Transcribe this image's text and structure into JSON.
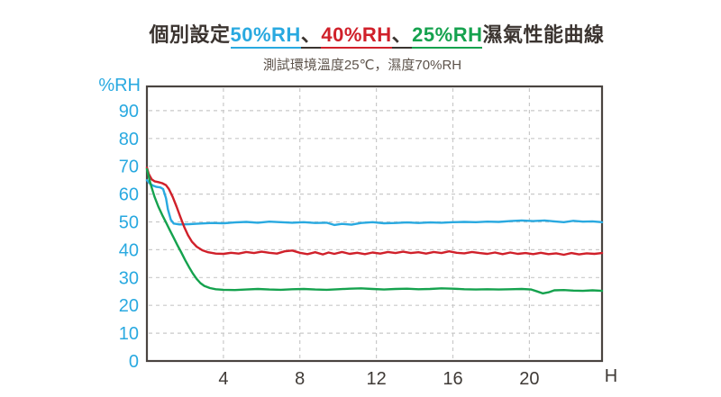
{
  "title": {
    "segments": [
      {
        "text": "個別設定",
        "color": "#3b3430",
        "underline": false
      },
      {
        "text": "50%RH",
        "color": "#29a9e0",
        "underline": true
      },
      {
        "text": "、",
        "color": "#3b3430",
        "underline": true
      },
      {
        "text": "40%RH",
        "color": "#d0202a",
        "underline": true
      },
      {
        "text": "、",
        "color": "#3b3430",
        "underline": true
      },
      {
        "text": "25%RH",
        "color": "#15a24e",
        "underline": true
      },
      {
        "text": "濕氣性能曲線",
        "color": "#3b3430",
        "underline": false
      }
    ]
  },
  "subtitle": {
    "text": "測試環境溫度25℃，濕度70%RH",
    "color": "#5d534b"
  },
  "chart_data": {
    "type": "line",
    "title": "個別設定50%RH、40%RH、25%RH濕氣性能曲線",
    "subtitle": "測試環境溫度25℃，濕度70%RH",
    "xlabel": "H",
    "ylabel": "%RH",
    "xlim": [
      0,
      23.8
    ],
    "ylim": [
      0,
      98.7
    ],
    "x_ticks": [
      4,
      8,
      12,
      16,
      20
    ],
    "y_ticks": [
      0,
      10,
      20,
      30,
      40,
      50,
      60,
      70,
      80,
      90
    ],
    "grid": "dashed",
    "legend": "none",
    "background": "#ffffff",
    "axis_color": "#4a4440",
    "grid_color": "#c9c9c9",
    "tick_label_colors": {
      "x": "#3f3a36",
      "y": "#29a9e0"
    },
    "series": [
      {
        "name": "50%RH",
        "color": "#29a9e0",
        "points": [
          [
            0,
            65
          ],
          [
            0.15,
            63.8
          ],
          [
            0.3,
            63.1
          ],
          [
            0.5,
            62.6
          ],
          [
            0.7,
            62.4
          ],
          [
            0.85,
            61.8
          ],
          [
            1.0,
            58.5
          ],
          [
            1.1,
            54.5
          ],
          [
            1.25,
            50.8
          ],
          [
            1.4,
            49.4
          ],
          [
            1.7,
            49.1
          ],
          [
            2.2,
            49.2
          ],
          [
            2.8,
            49.4
          ],
          [
            3.4,
            49.6
          ],
          [
            4,
            49.5
          ],
          [
            4.6,
            49.8
          ],
          [
            5.2,
            50.0
          ],
          [
            5.8,
            49.7
          ],
          [
            6.4,
            50.1
          ],
          [
            7,
            49.9
          ],
          [
            7.6,
            49.7
          ],
          [
            8.2,
            49.9
          ],
          [
            8.8,
            49.6
          ],
          [
            9.4,
            49.7
          ],
          [
            9.8,
            48.9
          ],
          [
            10.2,
            49.3
          ],
          [
            10.7,
            49.0
          ],
          [
            11.2,
            49.6
          ],
          [
            11.8,
            49.9
          ],
          [
            12.4,
            49.5
          ],
          [
            13,
            49.6
          ],
          [
            13.6,
            49.8
          ],
          [
            14.2,
            49.6
          ],
          [
            14.8,
            49.8
          ],
          [
            15.4,
            49.7
          ],
          [
            16,
            49.9
          ],
          [
            16.6,
            50.0
          ],
          [
            17.2,
            49.9
          ],
          [
            17.8,
            50.1
          ],
          [
            18.4,
            50.0
          ],
          [
            19,
            50.3
          ],
          [
            19.6,
            50.5
          ],
          [
            20.2,
            50.3
          ],
          [
            20.8,
            50.5
          ],
          [
            21.3,
            50.2
          ],
          [
            21.8,
            49.9
          ],
          [
            22.3,
            50.4
          ],
          [
            22.8,
            50.1
          ],
          [
            23.3,
            50.2
          ],
          [
            23.8,
            49.9
          ]
        ]
      },
      {
        "name": "40%RH",
        "color": "#d0202a",
        "points": [
          [
            0,
            69.5
          ],
          [
            0.1,
            67.2
          ],
          [
            0.25,
            65.3
          ],
          [
            0.4,
            64.6
          ],
          [
            0.6,
            64.3
          ],
          [
            0.8,
            63.9
          ],
          [
            1.0,
            63.2
          ],
          [
            1.15,
            61.8
          ],
          [
            1.35,
            59
          ],
          [
            1.55,
            55.5
          ],
          [
            1.75,
            51.8
          ],
          [
            1.95,
            48.2
          ],
          [
            2.15,
            45.2
          ],
          [
            2.35,
            42.9
          ],
          [
            2.6,
            41.1
          ],
          [
            2.9,
            39.8
          ],
          [
            3.2,
            39.1
          ],
          [
            3.6,
            38.6
          ],
          [
            4,
            38.5
          ],
          [
            4.4,
            38.9
          ],
          [
            4.8,
            38.6
          ],
          [
            5.2,
            39.2
          ],
          [
            5.6,
            38.8
          ],
          [
            6,
            39.3
          ],
          [
            6.4,
            38.9
          ],
          [
            6.8,
            38.6
          ],
          [
            7.2,
            39.4
          ],
          [
            7.6,
            39.7
          ],
          [
            8,
            38.9
          ],
          [
            8.4,
            38.4
          ],
          [
            8.8,
            39.1
          ],
          [
            9.2,
            38.3
          ],
          [
            9.5,
            39.0
          ],
          [
            9.8,
            38.5
          ],
          [
            10.2,
            39.2
          ],
          [
            10.6,
            38.5
          ],
          [
            11,
            38.9
          ],
          [
            11.4,
            38.4
          ],
          [
            11.8,
            39.0
          ],
          [
            12.2,
            38.6
          ],
          [
            12.6,
            39.2
          ],
          [
            13,
            38.8
          ],
          [
            13.4,
            39.3
          ],
          [
            13.8,
            38.8
          ],
          [
            14.2,
            39.1
          ],
          [
            14.6,
            38.6
          ],
          [
            15,
            39.2
          ],
          [
            15.4,
            38.8
          ],
          [
            15.8,
            39.4
          ],
          [
            16.2,
            38.9
          ],
          [
            16.6,
            38.7
          ],
          [
            17,
            39.2
          ],
          [
            17.4,
            38.8
          ],
          [
            17.8,
            38.5
          ],
          [
            18.2,
            39.0
          ],
          [
            18.6,
            38.4
          ],
          [
            19,
            39.0
          ],
          [
            19.4,
            38.5
          ],
          [
            19.8,
            38.8
          ],
          [
            20.2,
            38.4
          ],
          [
            20.6,
            38.9
          ],
          [
            21,
            38.4
          ],
          [
            21.4,
            38.7
          ],
          [
            21.8,
            38.2
          ],
          [
            22.2,
            38.8
          ],
          [
            22.6,
            38.3
          ],
          [
            23,
            38.7
          ],
          [
            23.4,
            38.5
          ],
          [
            23.8,
            38.8
          ]
        ]
      },
      {
        "name": "25%RH",
        "color": "#15a24e",
        "points": [
          [
            0,
            69
          ],
          [
            0.2,
            63.5
          ],
          [
            0.4,
            59
          ],
          [
            0.6,
            55.5
          ],
          [
            0.8,
            52.5
          ],
          [
            1.0,
            49.8
          ],
          [
            1.2,
            47
          ],
          [
            1.4,
            44.3
          ],
          [
            1.6,
            41.6
          ],
          [
            1.8,
            39
          ],
          [
            2.0,
            36.3
          ],
          [
            2.2,
            33.8
          ],
          [
            2.4,
            31.5
          ],
          [
            2.6,
            29.5
          ],
          [
            2.8,
            28
          ],
          [
            3.0,
            27
          ],
          [
            3.3,
            26.2
          ],
          [
            3.6,
            25.8
          ],
          [
            4,
            25.6
          ],
          [
            4.6,
            25.5
          ],
          [
            5.2,
            25.7
          ],
          [
            5.8,
            25.9
          ],
          [
            6.4,
            25.7
          ],
          [
            7,
            25.6
          ],
          [
            7.6,
            25.8
          ],
          [
            8.2,
            25.9
          ],
          [
            8.8,
            25.7
          ],
          [
            9.4,
            25.6
          ],
          [
            10,
            25.8
          ],
          [
            10.6,
            26.0
          ],
          [
            11.2,
            26.1
          ],
          [
            11.8,
            25.9
          ],
          [
            12.4,
            25.7
          ],
          [
            13,
            25.9
          ],
          [
            13.6,
            26.0
          ],
          [
            14.2,
            25.8
          ],
          [
            14.8,
            25.9
          ],
          [
            15.4,
            26.1
          ],
          [
            16,
            26.0
          ],
          [
            16.6,
            25.8
          ],
          [
            17.2,
            25.7
          ],
          [
            17.8,
            25.8
          ],
          [
            18.4,
            25.7
          ],
          [
            19,
            25.8
          ],
          [
            19.6,
            25.9
          ],
          [
            20.1,
            25.7
          ],
          [
            20.4,
            25.0
          ],
          [
            20.7,
            24.3
          ],
          [
            21.0,
            24.7
          ],
          [
            21.3,
            25.4
          ],
          [
            21.8,
            25.5
          ],
          [
            22.3,
            25.3
          ],
          [
            22.8,
            25.2
          ],
          [
            23.3,
            25.4
          ],
          [
            23.8,
            25.2
          ]
        ]
      }
    ]
  }
}
